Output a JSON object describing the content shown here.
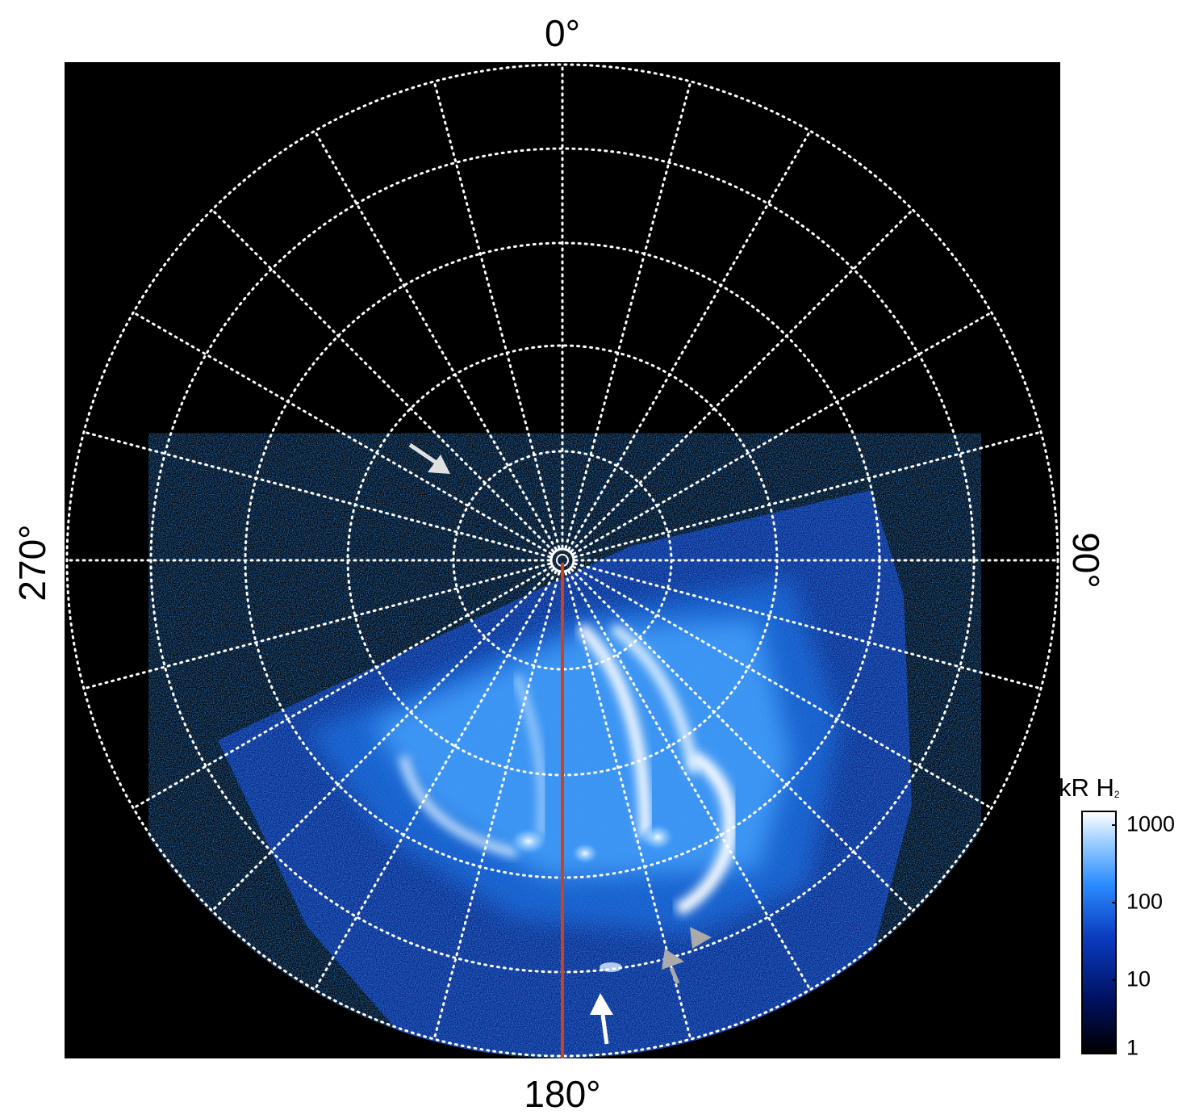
{
  "labels": {
    "top": "0°",
    "bottom": "180°",
    "left": "270°",
    "right": "90°"
  },
  "colorbar": {
    "title_main": "kR H",
    "title_sub": "2",
    "ticks": [
      "1000",
      "100",
      "10",
      "1"
    ]
  },
  "colors": {
    "background": "#000000",
    "grid": "#ffffff",
    "meridian_line": "#d0411b",
    "arrow_white": "#ffffff",
    "arrow_gray": "#aaaaaa",
    "aurora_bright": "#e8f4ff",
    "aurora_mid": "#2a8cff",
    "aurora_dim": "#0a2a9a"
  }
}
